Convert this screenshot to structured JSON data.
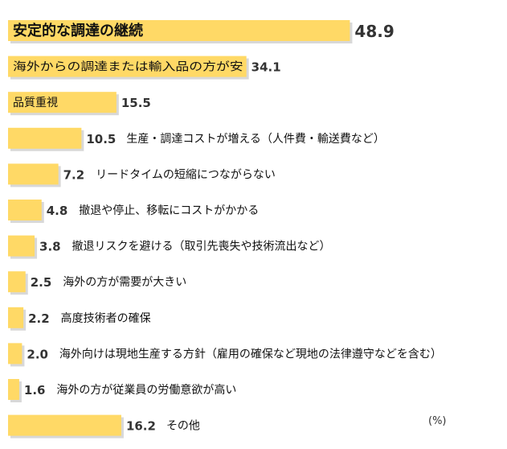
{
  "chart_data": {
    "type": "bar",
    "orientation": "horizontal",
    "unit": "(%)",
    "bar_color": "#FFD966",
    "categories": [
      "安定的な調達の継続",
      "海外からの調達または輸入品の方が安",
      "品質重視",
      "生産・調達コストが増える（人件費・輸送費など）",
      "リードタイムの短縮につながらない",
      "撤退や停止、移転にコストがかかる",
      "撤退リスクを避ける（取引先喪失や技術流出など）",
      "海外の方が需要が大きい",
      "高度技術者の確保",
      "海外向けは現地生産する方針（雇用の確保など現地の法律遵守などを含む）",
      "海外の方が従業員の労働意欲が高い",
      "その他"
    ],
    "values": [
      48.9,
      34.1,
      15.5,
      10.5,
      7.2,
      4.8,
      3.8,
      2.5,
      2.2,
      2.0,
      1.6,
      16.2
    ],
    "value_labels": [
      "48.9",
      "34.1",
      "15.5",
      "10.5",
      "7.2",
      "4.8",
      "3.8",
      "2.5",
      "2.2",
      "2.0",
      "1.6",
      "16.2"
    ]
  }
}
